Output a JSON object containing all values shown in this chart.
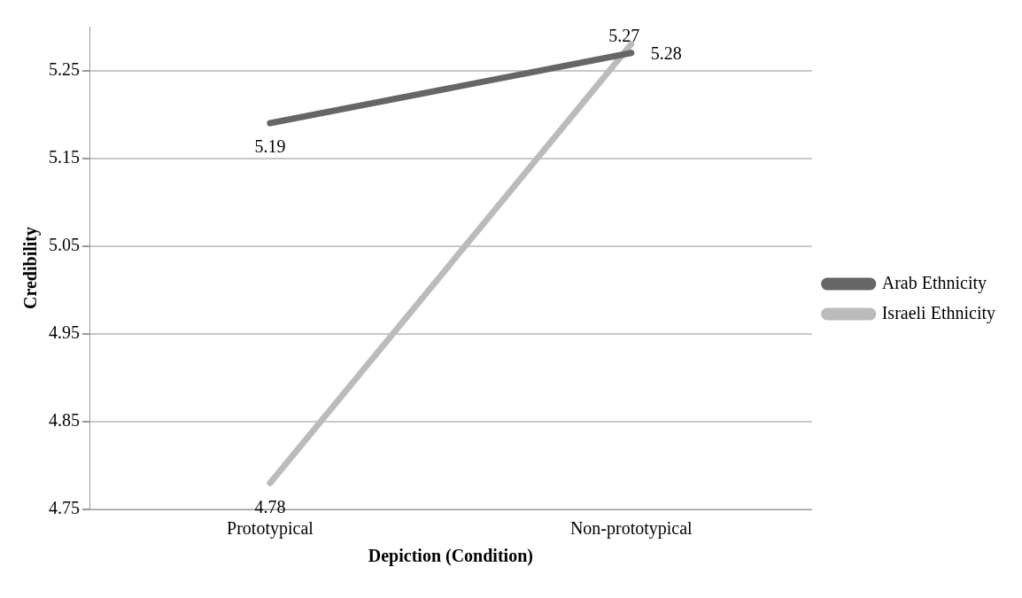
{
  "chart_data": {
    "type": "line",
    "xlabel": "Depiction (Condition)",
    "ylabel": "Credibility",
    "categories": [
      "Prototypical",
      "Non-prototypical"
    ],
    "series": [
      {
        "name": "Arab Ethnicity",
        "color": "#666666",
        "values": [
          5.19,
          5.27
        ]
      },
      {
        "name": "Israeli Ethnicity",
        "color": "#bbbbbb",
        "values": [
          4.78,
          5.28
        ]
      }
    ],
    "ylim": [
      4.75,
      5.3
    ],
    "yticks": [
      4.75,
      4.85,
      4.95,
      5.05,
      5.15,
      5.25
    ],
    "grid": "y",
    "legend": "right",
    "marker": "none",
    "line_style": "solid",
    "data_labels": true
  }
}
